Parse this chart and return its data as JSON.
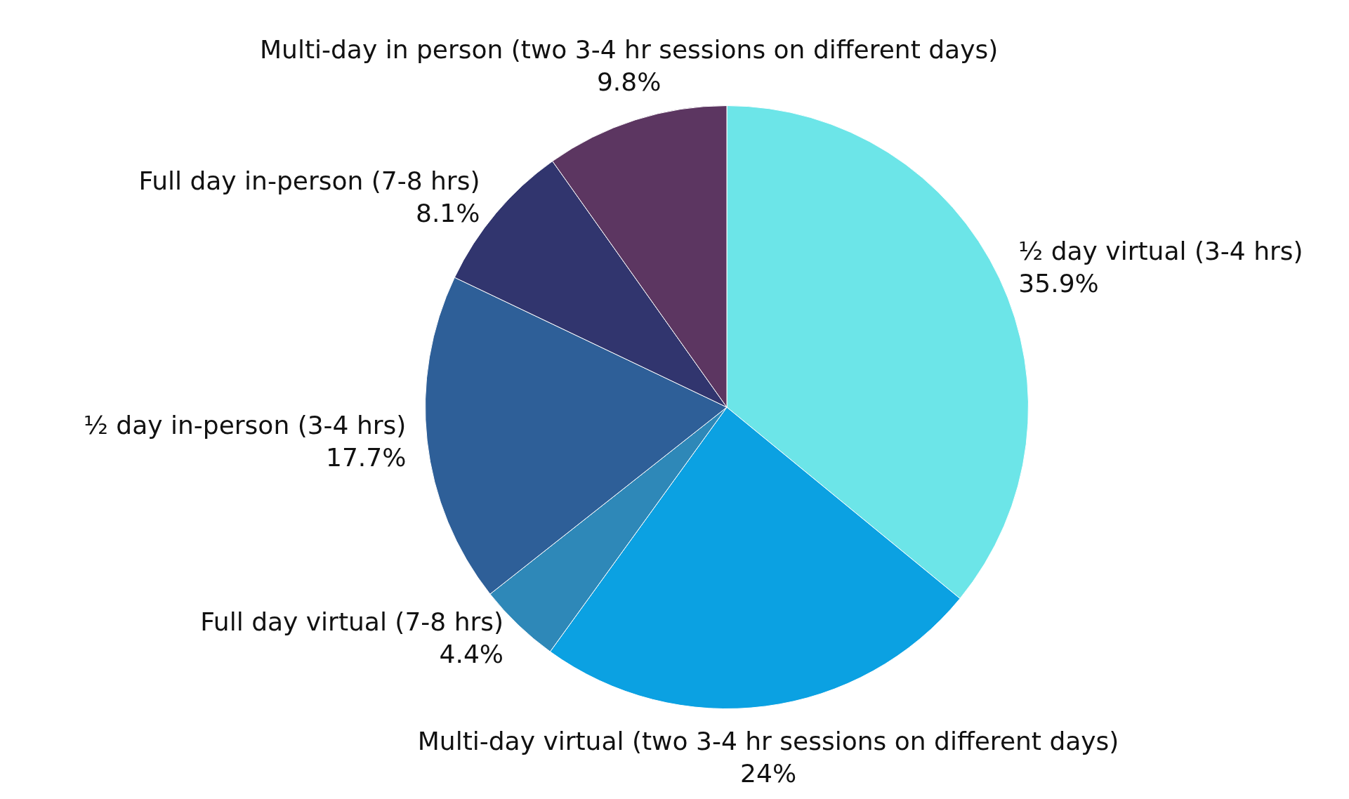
{
  "chart_data": {
    "type": "pie",
    "categories": [
      "½ day virtual (3-4 hrs)",
      "Multi-day virtual (two 3-4 hr sessions on different days)",
      "Full day virtual (7-8 hrs)",
      "½ day in-person (3-4 hrs)",
      "Full day in-person (7-8 hrs)",
      "Multi-day in person (two 3-4 hr sessions on different days)"
    ],
    "values": [
      35.9,
      24,
      4.4,
      17.7,
      8.1,
      9.8
    ],
    "colors": [
      "#6ce5e8",
      "#0ba1e2",
      "#2e88b8",
      "#2e5f98",
      "#31356e",
      "#5c3661"
    ],
    "value_labels": [
      "35.9%",
      "24%",
      "4.4%",
      "17.7%",
      "8.1%",
      "9.8%"
    ],
    "legend": false
  }
}
